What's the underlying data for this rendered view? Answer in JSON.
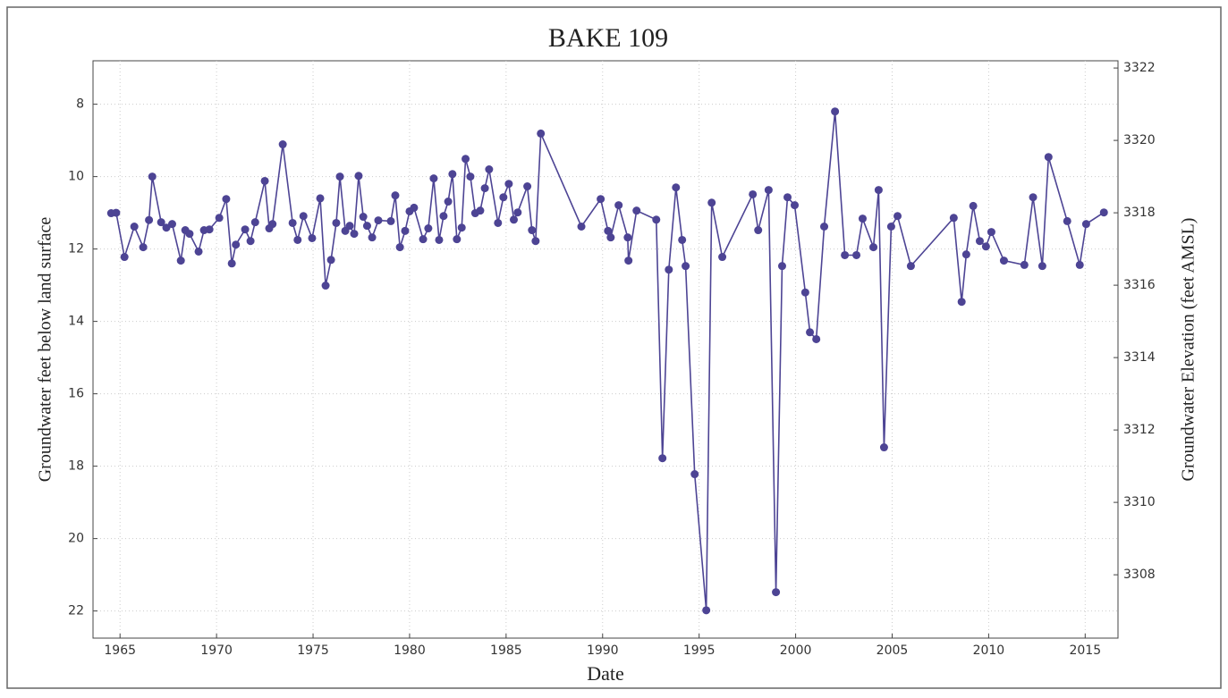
{
  "chart_data": {
    "type": "line",
    "title": "BAKE 109",
    "x_label": "Date",
    "y_label": "Groundwater feet below land surface",
    "y2_label": "Groundwater Elevation (feet AMSL)",
    "x": [
      1964.54,
      1964.8,
      1965.23,
      1965.74,
      1966.2,
      1966.5,
      1966.67,
      1967.13,
      1967.4,
      1967.7,
      1968.15,
      1968.38,
      1968.6,
      1969.07,
      1969.35,
      1969.63,
      1970.14,
      1970.5,
      1970.79,
      1971.0,
      1971.48,
      1971.76,
      1972.0,
      1972.5,
      1972.73,
      1972.9,
      1973.43,
      1973.94,
      1974.2,
      1974.5,
      1974.95,
      1975.37,
      1975.65,
      1975.93,
      1976.2,
      1976.39,
      1976.67,
      1976.9,
      1977.13,
      1977.36,
      1977.6,
      1977.8,
      1978.06,
      1978.38,
      1979.03,
      1979.26,
      1979.5,
      1979.77,
      1980.0,
      1980.23,
      1980.7,
      1980.97,
      1981.25,
      1981.53,
      1981.76,
      1982.0,
      1982.22,
      1982.45,
      1982.7,
      1982.9,
      1983.15,
      1983.4,
      1983.66,
      1983.9,
      1984.12,
      1984.58,
      1984.86,
      1985.14,
      1985.4,
      1985.6,
      1986.1,
      1986.34,
      1986.53,
      1986.8,
      1988.9,
      1989.9,
      1990.28,
      1990.42,
      1990.83,
      1991.3,
      1991.34,
      1991.76,
      1992.78,
      1993.1,
      1993.43,
      1993.8,
      1994.12,
      1994.3,
      1994.77,
      1995.37,
      1995.65,
      1996.2,
      1997.78,
      1998.06,
      1998.6,
      1998.98,
      1999.3,
      1999.58,
      1999.95,
      2000.5,
      2000.74,
      2001.07,
      2001.48,
      2002.04,
      2002.55,
      2003.15,
      2003.47,
      2004.03,
      2004.3,
      2004.58,
      2004.95,
      2005.28,
      2005.97,
      2008.19,
      2008.6,
      2008.84,
      2009.2,
      2009.54,
      2009.86,
      2010.14,
      2010.79,
      2011.85,
      2012.3,
      2012.78,
      2013.1,
      2014.07,
      2014.72,
      2015.05,
      2015.97
    ],
    "values": [
      11.01,
      11.0,
      12.22,
      11.38,
      11.95,
      11.2,
      10.0,
      11.26,
      11.41,
      11.31,
      12.32,
      11.48,
      11.58,
      12.07,
      11.48,
      11.46,
      11.14,
      10.62,
      12.4,
      11.88,
      11.46,
      11.78,
      11.26,
      10.12,
      11.43,
      11.31,
      9.11,
      11.28,
      11.75,
      11.09,
      11.7,
      10.6,
      13.01,
      12.3,
      11.28,
      10.0,
      11.5,
      11.36,
      11.58,
      9.98,
      11.11,
      11.36,
      11.68,
      11.21,
      11.23,
      10.52,
      11.95,
      11.5,
      10.96,
      10.86,
      11.73,
      11.43,
      10.05,
      11.75,
      11.09,
      10.69,
      9.93,
      11.73,
      11.41,
      9.51,
      10.0,
      11.01,
      10.94,
      10.32,
      9.8,
      11.28,
      10.57,
      10.2,
      11.19,
      10.99,
      10.27,
      11.48,
      11.78,
      8.81,
      11.38,
      10.62,
      11.5,
      11.68,
      10.79,
      11.68,
      12.32,
      10.94,
      11.19,
      17.78,
      12.57,
      10.3,
      11.75,
      12.47,
      18.22,
      21.98,
      10.72,
      12.22,
      10.49,
      11.48,
      10.37,
      21.48,
      12.47,
      10.57,
      10.79,
      13.2,
      14.3,
      14.49,
      11.38,
      8.2,
      12.17,
      12.17,
      11.16,
      11.95,
      10.37,
      17.48,
      11.38,
      11.09,
      12.47,
      11.14,
      13.46,
      12.15,
      10.81,
      11.78,
      11.93,
      11.53,
      12.32,
      12.44,
      10.57,
      12.47,
      9.46,
      11.23,
      12.44,
      11.31,
      10.99
    ],
    "color": "#4d4494",
    "xlim": [
      1963.6,
      2016.7
    ],
    "xticks": [
      1965,
      1970,
      1975,
      1980,
      1985,
      1990,
      1995,
      2000,
      2005,
      2010,
      2015
    ],
    "ylim": [
      22.75,
      6.8
    ],
    "yticks": [
      8,
      10,
      12,
      14,
      16,
      18,
      20,
      22
    ],
    "y2lim": [
      3306.25,
      3322.2
    ],
    "y2ticks": [
      3308,
      3310,
      3312,
      3314,
      3316,
      3318,
      3320,
      3322
    ],
    "grid": true
  }
}
